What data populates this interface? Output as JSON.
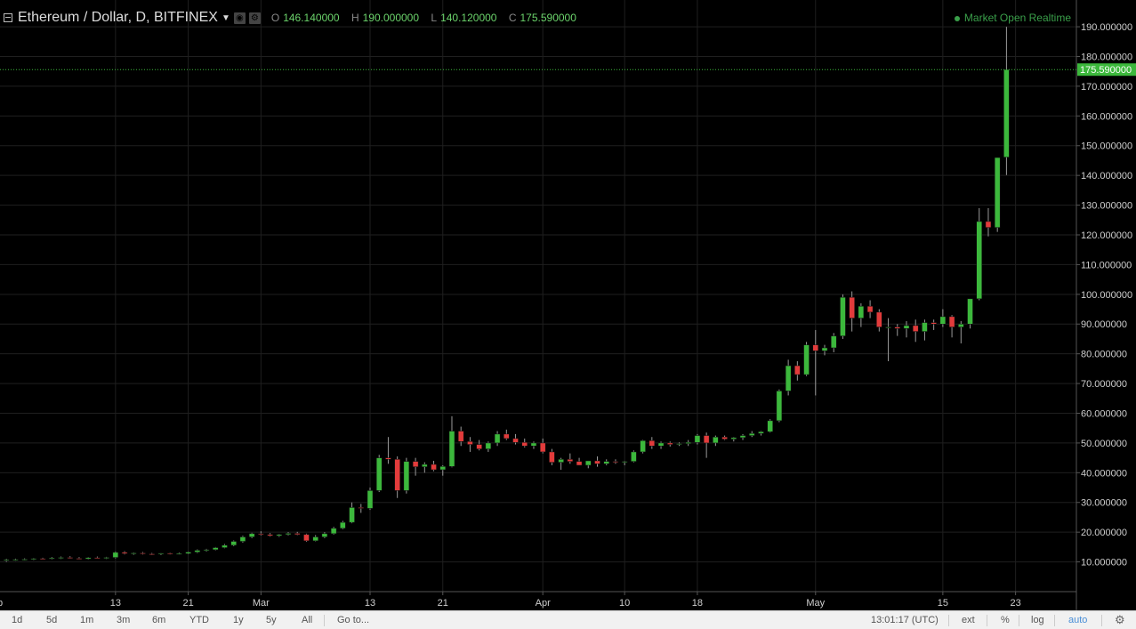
{
  "header": {
    "symbol": "Ethereum / Dollar, D, BITFINEX",
    "ohlc": [
      {
        "k": "O",
        "v": "146.140000"
      },
      {
        "k": "H",
        "v": "190.000000"
      },
      {
        "k": "L",
        "v": "140.120000"
      },
      {
        "k": "C",
        "v": "175.590000"
      }
    ],
    "status": "Market Open",
    "realtime": "Realtime"
  },
  "colors": {
    "up": "#3cb83c",
    "down": "#e23b3b",
    "grid": "#1f1f1f",
    "axis_text": "#cfcfcf",
    "last_price_bg": "#3cb83c"
  },
  "chart_data": {
    "type": "candlestick",
    "y_ticks": [
      "10.000000",
      "20.000000",
      "30.000000",
      "40.000000",
      "50.000000",
      "60.000000",
      "70.000000",
      "80.000000",
      "90.000000",
      "100.000000",
      "110.000000",
      "120.000000",
      "130.000000",
      "140.000000",
      "150.000000",
      "160.000000",
      "170.000000",
      "180.000000",
      "190.000000"
    ],
    "ylim": [
      0,
      199
    ],
    "x_ticks": [
      {
        "label": "eb",
        "day": -1
      },
      {
        "label": "13",
        "day": 12
      },
      {
        "label": "21",
        "day": 20
      },
      {
        "label": "Mar",
        "day": 28
      },
      {
        "label": "13",
        "day": 40
      },
      {
        "label": "21",
        "day": 48
      },
      {
        "label": "Apr",
        "day": 59
      },
      {
        "label": "10",
        "day": 68
      },
      {
        "label": "18",
        "day": 76
      },
      {
        "label": "May",
        "day": 89
      },
      {
        "label": "15",
        "day": 103
      },
      {
        "label": "23",
        "day": 111
      }
    ],
    "last_price": "175.590000",
    "candles": [
      [
        10.5,
        11,
        10,
        10.7
      ],
      [
        10.7,
        11.1,
        10.4,
        10.8
      ],
      [
        10.8,
        11.2,
        10.5,
        10.9
      ],
      [
        10.9,
        11.3,
        10.6,
        11.1
      ],
      [
        11.1,
        11.4,
        10.8,
        11.0
      ],
      [
        11.0,
        11.6,
        10.8,
        11.3
      ],
      [
        11.3,
        11.8,
        11.0,
        11.5
      ],
      [
        11.5,
        11.9,
        11.1,
        11.2
      ],
      [
        11.2,
        11.6,
        10.9,
        11.0
      ],
      [
        11.0,
        11.6,
        10.8,
        11.4
      ],
      [
        11.4,
        11.8,
        11.1,
        11.2
      ],
      [
        11.2,
        11.7,
        11.0,
        11.5
      ],
      [
        11.5,
        13.5,
        11.2,
        13.2
      ],
      [
        13.2,
        13.6,
        12.5,
        12.8
      ],
      [
        12.8,
        13.2,
        12.4,
        13.0
      ],
      [
        13.0,
        13.3,
        12.5,
        12.7
      ],
      [
        12.7,
        13.0,
        12.3,
        12.6
      ],
      [
        12.6,
        13.0,
        12.3,
        12.9
      ],
      [
        12.9,
        13.1,
        12.5,
        12.6
      ],
      [
        12.6,
        13.1,
        12.4,
        12.8
      ],
      [
        12.8,
        13.5,
        12.6,
        13.3
      ],
      [
        13.3,
        14.2,
        13.0,
        13.9
      ],
      [
        13.9,
        14.4,
        13.5,
        14.1
      ],
      [
        14.1,
        15.0,
        13.9,
        14.8
      ],
      [
        14.8,
        16.0,
        14.6,
        15.6
      ],
      [
        15.6,
        17.2,
        15.3,
        16.9
      ],
      [
        16.9,
        18.8,
        16.5,
        18.4
      ],
      [
        18.4,
        19.8,
        18.0,
        19.5
      ],
      [
        19.5,
        20.3,
        18.9,
        19.2
      ],
      [
        19.2,
        19.7,
        18.5,
        18.8
      ],
      [
        18.8,
        19.4,
        18.4,
        19.2
      ],
      [
        19.2,
        20.0,
        18.9,
        19.6
      ],
      [
        19.6,
        20.1,
        19.0,
        19.2
      ],
      [
        19.2,
        19.5,
        16.8,
        17.1
      ],
      [
        17.1,
        19.0,
        16.9,
        18.4
      ],
      [
        18.4,
        20.0,
        18.0,
        19.5
      ],
      [
        19.5,
        21.8,
        19.2,
        21.3
      ],
      [
        21.3,
        23.8,
        21.0,
        23.3
      ],
      [
        23.3,
        30.0,
        23.0,
        28.3
      ],
      [
        28.3,
        29.5,
        26.5,
        28.0
      ],
      [
        28.0,
        35.0,
        27.5,
        34.0
      ],
      [
        34.0,
        46.0,
        33.5,
        45.0
      ],
      [
        45.0,
        52.0,
        43.0,
        44.5
      ],
      [
        44.5,
        45.5,
        31.5,
        34.0
      ],
      [
        34.0,
        45.0,
        33.0,
        43.8
      ],
      [
        43.8,
        45.0,
        39.0,
        42.0
      ],
      [
        42.0,
        43.5,
        40.0,
        42.8
      ],
      [
        42.8,
        44.0,
        40.5,
        41.0
      ],
      [
        41.0,
        42.5,
        39.0,
        42.1
      ],
      [
        42.1,
        59.0,
        41.8,
        54.0
      ],
      [
        54.0,
        55.5,
        49.0,
        50.5
      ],
      [
        50.5,
        52.0,
        47.0,
        49.5
      ],
      [
        49.5,
        51.0,
        47.5,
        48.0
      ],
      [
        48.0,
        50.5,
        47.0,
        50.0
      ],
      [
        50.0,
        54.0,
        49.0,
        53.0
      ],
      [
        53.0,
        54.5,
        51.0,
        51.5
      ],
      [
        51.5,
        53.0,
        49.5,
        50.2
      ],
      [
        50.2,
        51.5,
        48.5,
        49.0
      ],
      [
        49.0,
        50.5,
        48.0,
        50.0
      ],
      [
        50.0,
        51.5,
        46.5,
        47.0
      ],
      [
        47.0,
        48.0,
        42.5,
        43.5
      ],
      [
        43.5,
        45.0,
        41.0,
        44.5
      ],
      [
        44.5,
        46.5,
        43.0,
        43.8
      ],
      [
        43.8,
        45.0,
        42.5,
        42.5
      ],
      [
        42.5,
        44.0,
        41.5,
        44.0
      ],
      [
        44.0,
        45.5,
        42.0,
        43.0
      ],
      [
        43.0,
        44.5,
        42.5,
        43.8
      ],
      [
        43.8,
        44.5,
        43.0,
        43.5
      ],
      [
        43.5,
        44.0,
        42.5,
        43.8
      ],
      [
        43.8,
        47.5,
        43.5,
        47.0
      ],
      [
        47.0,
        51.0,
        46.5,
        50.8
      ],
      [
        50.8,
        52.0,
        48.0,
        49.0
      ],
      [
        49.0,
        50.5,
        48.0,
        50.0
      ],
      [
        50.0,
        50.5,
        48.8,
        49.5
      ],
      [
        49.5,
        50.2,
        49.0,
        49.8
      ],
      [
        49.8,
        51.0,
        49.0,
        50.2
      ],
      [
        50.2,
        53.0,
        49.5,
        52.5
      ],
      [
        52.5,
        53.5,
        45.0,
        50.0
      ],
      [
        50.0,
        52.5,
        49.0,
        52.0
      ],
      [
        52.0,
        52.5,
        51.0,
        51.3
      ],
      [
        51.3,
        52.0,
        50.5,
        51.8
      ],
      [
        51.8,
        53.0,
        51.0,
        52.5
      ],
      [
        52.5,
        54.0,
        52.0,
        53.2
      ],
      [
        53.2,
        54.0,
        52.5,
        53.8
      ],
      [
        53.8,
        58.0,
        53.5,
        57.5
      ],
      [
        57.5,
        68.0,
        57.0,
        67.5
      ],
      [
        67.5,
        78.0,
        66.0,
        76.0
      ],
      [
        76.0,
        77.5,
        71.0,
        73.0
      ],
      [
        73.0,
        84.0,
        72.5,
        83.0
      ],
      [
        83.0,
        88.0,
        66.0,
        81.0
      ],
      [
        81.0,
        83.0,
        79.5,
        82.0
      ],
      [
        82.0,
        87.0,
        80.5,
        86.0
      ],
      [
        86.0,
        100.0,
        85.0,
        99.0
      ],
      [
        99.0,
        101.0,
        87.5,
        92.0
      ],
      [
        92.0,
        97.0,
        89.0,
        96.0
      ],
      [
        96.0,
        98.0,
        92.0,
        94.0
      ],
      [
        94.0,
        95.0,
        87.5,
        89.0
      ],
      [
        89.0,
        92.0,
        77.5,
        89.0
      ],
      [
        89.0,
        90.0,
        86.0,
        88.5
      ],
      [
        88.5,
        91.0,
        85.5,
        89.5
      ],
      [
        89.5,
        91.5,
        84.0,
        87.5
      ],
      [
        87.5,
        91.5,
        84.5,
        90.5
      ],
      [
        90.5,
        91.5,
        88.0,
        90.0
      ],
      [
        90.0,
        95.0,
        89.0,
        92.5
      ],
      [
        92.5,
        93.0,
        85.5,
        89.0
      ],
      [
        89.0,
        91.0,
        83.5,
        90.0
      ],
      [
        90.0,
        98.5,
        88.5,
        98.5
      ],
      [
        98.5,
        129.0,
        98.0,
        124.5
      ],
      [
        124.5,
        129.0,
        119.5,
        122.5
      ],
      [
        122.5,
        146.0,
        121.0,
        146.0
      ],
      [
        146.14,
        190.0,
        140.12,
        175.59
      ]
    ]
  },
  "toolbar": {
    "ranges": [
      "1d",
      "5d",
      "1m",
      "3m",
      "6m",
      "YTD",
      "1y",
      "5y",
      "All"
    ],
    "goto": "Go to...",
    "time": "13:01:17 (UTC)",
    "ext": "ext",
    "pct": "%",
    "log": "log",
    "auto": "auto"
  }
}
